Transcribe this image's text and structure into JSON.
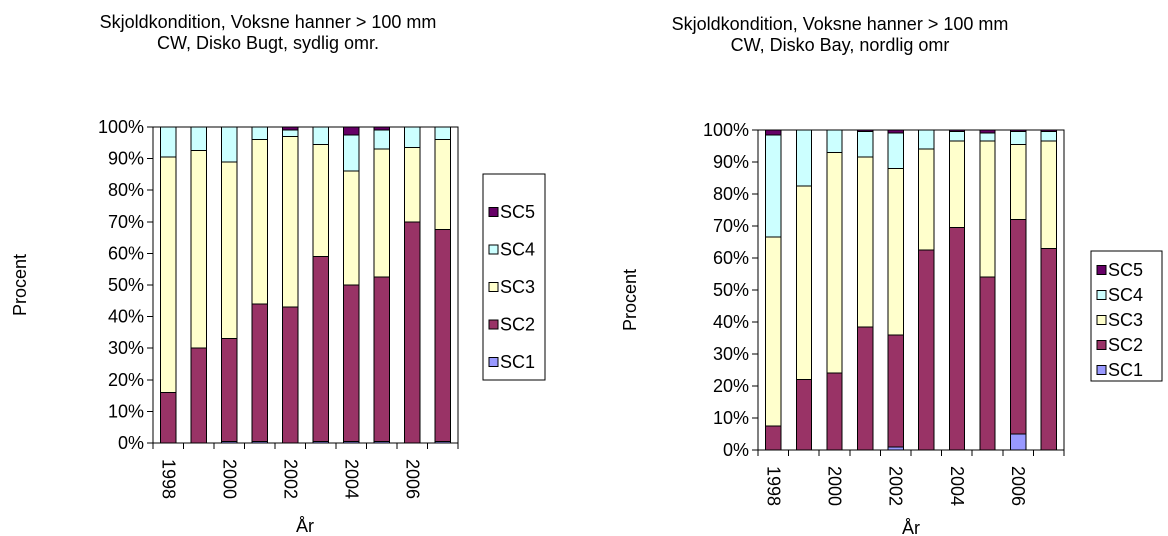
{
  "chart_data": [
    {
      "type": "bar",
      "stacked": "percent",
      "title": "Skjoldkondition, Voksne hanner > 100 mm",
      "subtitle": "CW, Disko Bugt, sydlig omr.",
      "xlabel": "År",
      "ylabel": "Procent",
      "ylim": [
        0,
        100
      ],
      "yticks": [
        "0%",
        "10%",
        "20%",
        "30%",
        "40%",
        "50%",
        "60%",
        "70%",
        "80%",
        "90%",
        "100%"
      ],
      "x": [
        1998,
        1999,
        2000,
        2001,
        2002,
        2003,
        2004,
        2005,
        2006,
        2007
      ],
      "xticks": [
        "1998",
        "2000",
        "2002",
        "2004",
        "2006"
      ],
      "grid": false,
      "legend": "right",
      "series": [
        {
          "name": "SC1",
          "color": "#9999FF",
          "values": [
            0,
            0,
            0.5,
            0.5,
            0,
            0.5,
            0.5,
            0.5,
            0,
            0.5
          ]
        },
        {
          "name": "SC2",
          "color": "#993366",
          "values": [
            16,
            30,
            32.5,
            43.5,
            43,
            58.5,
            49.5,
            52,
            70,
            67
          ]
        },
        {
          "name": "SC3",
          "color": "#FFFFCC",
          "values": [
            74.5,
            62.5,
            56,
            52,
            54,
            35.5,
            36,
            40.5,
            23.5,
            28.5
          ]
        },
        {
          "name": "SC4",
          "color": "#CCFFFF",
          "values": [
            9.5,
            7.5,
            11,
            4,
            2,
            5.5,
            11.5,
            6,
            6.5,
            4
          ]
        },
        {
          "name": "SC5",
          "color": "#660066",
          "values": [
            0,
            0,
            0,
            0,
            1,
            0,
            2.5,
            1,
            0,
            0
          ]
        }
      ]
    },
    {
      "type": "bar",
      "stacked": "percent",
      "title": "Skjoldkondition, Voksne hanner > 100 mm",
      "subtitle": "CW, Disko Bay, nordlig omr",
      "xlabel": "År",
      "ylabel": "Procent",
      "ylim": [
        0,
        100
      ],
      "yticks": [
        "0%",
        "10%",
        "20%",
        "30%",
        "40%",
        "50%",
        "60%",
        "70%",
        "80%",
        "90%",
        "100%"
      ],
      "x": [
        1998,
        1999,
        2000,
        2001,
        2002,
        2003,
        2004,
        2005,
        2006,
        2007
      ],
      "xticks": [
        "1998",
        "2000",
        "2002",
        "2004",
        "2006"
      ],
      "grid": false,
      "legend": "right",
      "series": [
        {
          "name": "SC1",
          "color": "#9999FF",
          "values": [
            0,
            0,
            0,
            0,
            1,
            0,
            0,
            0,
            5,
            0
          ]
        },
        {
          "name": "SC2",
          "color": "#993366",
          "values": [
            7.5,
            22,
            24,
            38.5,
            35,
            62.5,
            69.5,
            54,
            67,
            63
          ]
        },
        {
          "name": "SC3",
          "color": "#FFFFCC",
          "values": [
            59,
            60.5,
            69,
            53,
            52,
            31.5,
            27,
            42.5,
            23.5,
            33.5
          ]
        },
        {
          "name": "SC4",
          "color": "#CCFFFF",
          "values": [
            32,
            17.5,
            7,
            8,
            11,
            6,
            3,
            2.5,
            4,
            3
          ]
        },
        {
          "name": "SC5",
          "color": "#660066",
          "values": [
            1.5,
            0,
            0,
            0.5,
            1,
            0,
            0.5,
            1,
            0.5,
            0.5
          ]
        }
      ]
    }
  ]
}
